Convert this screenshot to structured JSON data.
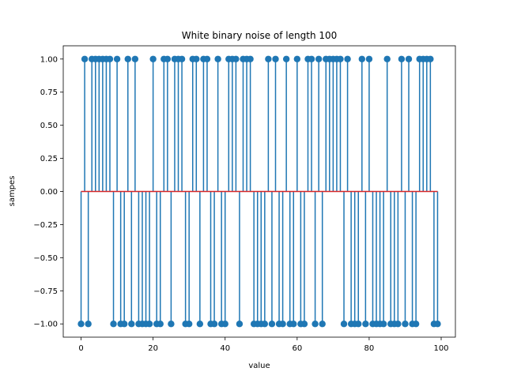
{
  "chart_data": {
    "type": "stem",
    "title": "White binary noise of length 100",
    "xlabel": "value",
    "ylabel": "sampes",
    "xlim": [
      -4.95,
      103.95
    ],
    "ylim": [
      -1.1,
      1.1
    ],
    "x_ticks": [
      0,
      20,
      40,
      60,
      80,
      100
    ],
    "x_tick_labels": [
      "0",
      "20",
      "40",
      "60",
      "80",
      "100"
    ],
    "y_ticks": [
      -1.0,
      -0.75,
      -0.5,
      -0.25,
      0.0,
      0.25,
      0.5,
      0.75,
      1.0
    ],
    "y_tick_labels": [
      "−1.00",
      "−0.75",
      "−0.50",
      "−0.25",
      "0.00",
      "0.25",
      "0.50",
      "0.75",
      "1.00"
    ],
    "grid": false,
    "colors": {
      "stem": "#1f77b4",
      "baseline": "#d62728"
    },
    "baseline": 0,
    "x": [
      0,
      1,
      2,
      3,
      4,
      5,
      6,
      7,
      8,
      9,
      10,
      11,
      12,
      13,
      14,
      15,
      16,
      17,
      18,
      19,
      20,
      21,
      22,
      23,
      24,
      25,
      26,
      27,
      28,
      29,
      30,
      31,
      32,
      33,
      34,
      35,
      36,
      37,
      38,
      39,
      40,
      41,
      42,
      43,
      44,
      45,
      46,
      47,
      48,
      49,
      50,
      51,
      52,
      53,
      54,
      55,
      56,
      57,
      58,
      59,
      60,
      61,
      62,
      63,
      64,
      65,
      66,
      67,
      68,
      69,
      70,
      71,
      72,
      73,
      74,
      75,
      76,
      77,
      78,
      79,
      80,
      81,
      82,
      83,
      84,
      85,
      86,
      87,
      88,
      89,
      90,
      91,
      92,
      93,
      94,
      95,
      96,
      97,
      98,
      99
    ],
    "values": [
      -1,
      1,
      -1,
      1,
      1,
      1,
      1,
      1,
      1,
      -1,
      1,
      -1,
      -1,
      1,
      -1,
      1,
      -1,
      -1,
      -1,
      -1,
      1,
      -1,
      -1,
      1,
      1,
      -1,
      1,
      1,
      1,
      -1,
      -1,
      1,
      1,
      -1,
      1,
      1,
      -1,
      -1,
      1,
      -1,
      -1,
      1,
      1,
      1,
      -1,
      1,
      1,
      1,
      -1,
      -1,
      -1,
      -1,
      1,
      -1,
      1,
      -1,
      -1,
      1,
      -1,
      -1,
      1,
      -1,
      -1,
      1,
      1,
      -1,
      1,
      -1,
      1,
      1,
      1,
      1,
      1,
      -1,
      1,
      -1,
      -1,
      -1,
      1,
      -1,
      1,
      -1,
      -1,
      -1,
      -1,
      1,
      -1,
      -1,
      -1,
      1,
      -1,
      1,
      -1,
      -1,
      1,
      1,
      1,
      1,
      -1,
      -1
    ]
  }
}
